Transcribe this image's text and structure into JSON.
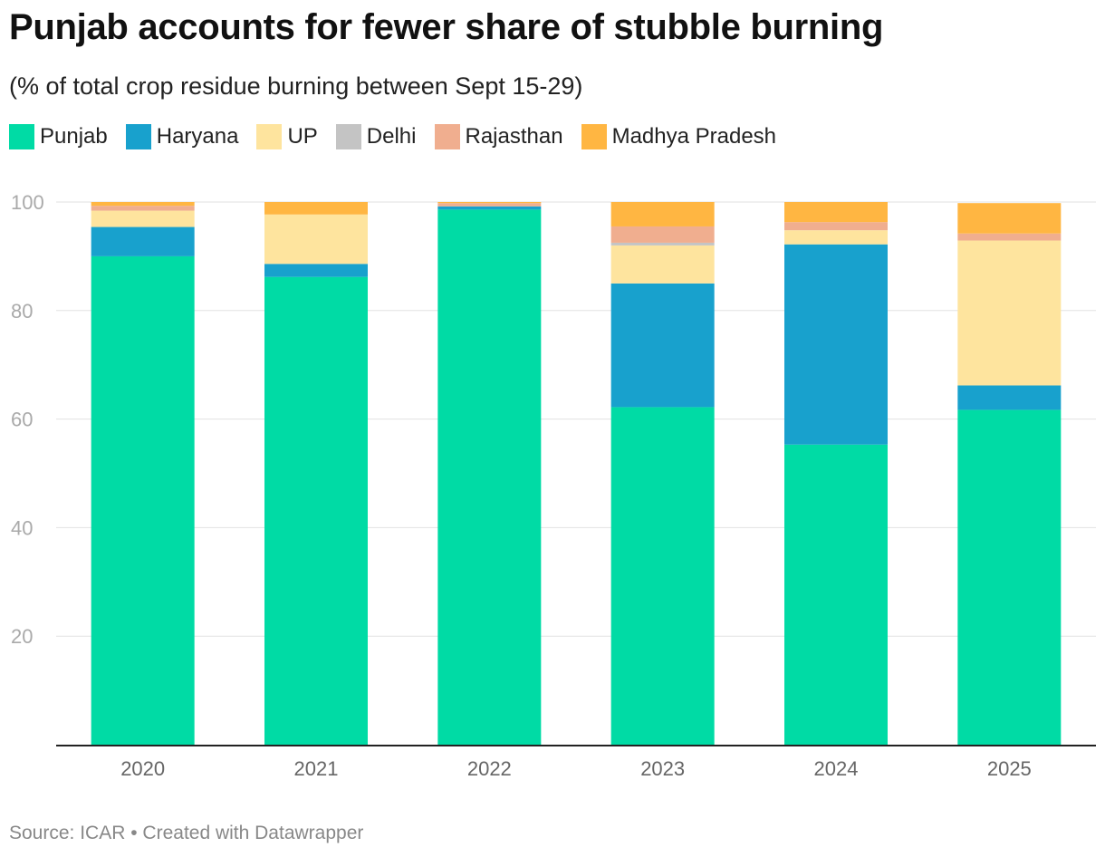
{
  "title": "Punjab accounts for fewer share of stubble burning",
  "subtitle": "(% of total crop residue burning between Sept 15-29)",
  "footer": {
    "source": "Source: ICAR",
    "separator": " • ",
    "credit": "Created with Datawrapper"
  },
  "chart_data": {
    "type": "bar",
    "stacked": true,
    "categories": [
      "2020",
      "2021",
      "2022",
      "2023",
      "2024",
      "2025"
    ],
    "series": [
      {
        "name": "Punjab",
        "color": "#00dba5",
        "values": [
          90.0,
          86.2,
          98.6,
          62.2,
          55.3,
          61.7
        ]
      },
      {
        "name": "Haryana",
        "color": "#18a1cd",
        "values": [
          5.4,
          2.4,
          0.6,
          22.8,
          36.9,
          4.5
        ]
      },
      {
        "name": "UP",
        "color": "#fee49e",
        "values": [
          3.0,
          9.1,
          0.0,
          7.0,
          2.6,
          26.7
        ]
      },
      {
        "name": "Delhi",
        "color": "#c4c4c4",
        "values": [
          0.0,
          0.0,
          0.0,
          0.5,
          0.0,
          0.0
        ]
      },
      {
        "name": "Rajasthan",
        "color": "#f0ae8f",
        "values": [
          0.9,
          0.0,
          0.6,
          3.0,
          1.5,
          1.3
        ]
      },
      {
        "name": "Madhya Pradesh",
        "color": "#ffb642",
        "values": [
          0.7,
          2.3,
          0.2,
          4.5,
          3.7,
          5.6
        ]
      }
    ],
    "title": "Punjab accounts for fewer share of stubble burning",
    "xlabel": "",
    "ylabel": "",
    "ylim": [
      0,
      100
    ],
    "yticks": [
      20,
      40,
      60,
      80,
      100
    ],
    "grid": true,
    "legend": "top-left"
  }
}
